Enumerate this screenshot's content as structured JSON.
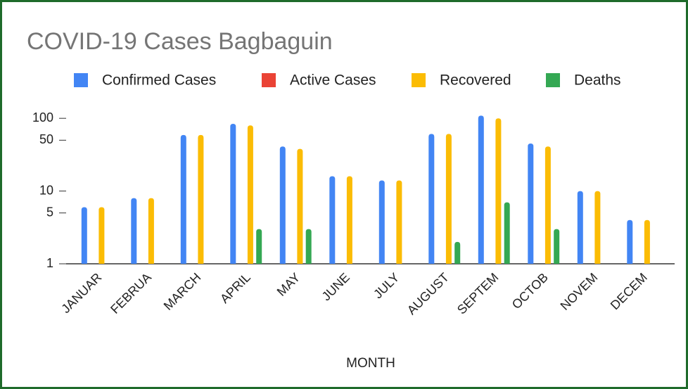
{
  "chart_data": {
    "type": "bar",
    "title": "COVID-19 Cases Bagbaguin",
    "x_label": "MONTH",
    "categories": [
      "JANUAR",
      "FEBRUA",
      "MARCH",
      "APRIL",
      "MAY",
      "JUNE",
      "JULY",
      "AUGUST",
      "SEPTEM",
      "OCTOB",
      "NOVEM",
      "DECEM"
    ],
    "series": [
      {
        "name": "Confirmed Cases",
        "color": "#4285f4",
        "values": [
          6,
          8,
          59,
          84,
          41,
          16,
          14,
          61,
          109,
          45,
          10,
          4
        ]
      },
      {
        "name": "Active Cases",
        "color": "#ea4335",
        "values": [
          null,
          null,
          null,
          null,
          null,
          null,
          null,
          null,
          null,
          null,
          null,
          null
        ]
      },
      {
        "name": "Recovered",
        "color": "#fbbc04",
        "values": [
          6,
          8,
          59,
          80,
          38,
          16,
          14,
          61,
          100,
          41,
          10,
          4
        ]
      },
      {
        "name": "Deaths",
        "color": "#34a853",
        "values": [
          null,
          null,
          null,
          3,
          3,
          null,
          null,
          2,
          7,
          3,
          null,
          null
        ]
      }
    ],
    "log_scale": true,
    "ylim": [
      1,
      120
    ],
    "yticks": [
      1,
      5,
      10,
      50,
      100
    ],
    "grid": false,
    "legend": "top"
  }
}
